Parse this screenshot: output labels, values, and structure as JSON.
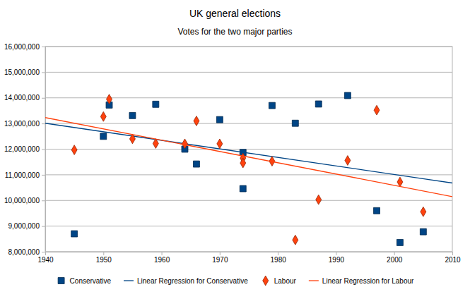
{
  "chart_data": {
    "type": "scatter",
    "title": "UK general elections",
    "subtitle": "Votes for the two major parties",
    "x": [
      1945,
      1950,
      1951,
      1955,
      1959,
      1964,
      1966,
      1970,
      1974,
      1974,
      1979,
      1983,
      1987,
      1992,
      1997,
      2001,
      2005
    ],
    "series": [
      {
        "name": "Conservative",
        "type": "scatter",
        "marker": "square",
        "color": "#004586",
        "values": [
          8700000,
          12500000,
          13720000,
          13310000,
          13750000,
          12000000,
          11420000,
          13150000,
          11870000,
          10460000,
          13700000,
          13010000,
          13760000,
          14090000,
          9600000,
          8360000,
          8780000
        ]
      },
      {
        "name": "Linear Regression for Conservative",
        "type": "line",
        "line_style": "solid",
        "color": "#004586",
        "x": [
          1940,
          2010
        ],
        "values": [
          13010000,
          10680000
        ]
      },
      {
        "name": "Labour",
        "type": "scatter",
        "marker": "diamond",
        "color": "#ff420e",
        "values": [
          11970000,
          13270000,
          13950000,
          12400000,
          12220000,
          12210000,
          13100000,
          12210000,
          11650000,
          11460000,
          11530000,
          8460000,
          10030000,
          11560000,
          13520000,
          10720000,
          9560000
        ]
      },
      {
        "name": "Linear Regression for Labour",
        "type": "line",
        "line_style": "solid",
        "color": "#ff420e",
        "x": [
          1940,
          2010
        ],
        "values": [
          13230000,
          10150000
        ]
      }
    ],
    "xlim": [
      1940,
      2010
    ],
    "xticks": [
      1940,
      1950,
      1960,
      1970,
      1980,
      1990,
      2000,
      2010
    ],
    "ylim": [
      8000000,
      16000000
    ],
    "yticks": [
      {
        "value": 8000000,
        "label": "8,000,000"
      },
      {
        "value": 9000000,
        "label": "9,000,000"
      },
      {
        "value": 10000000,
        "label": "10,000,000"
      },
      {
        "value": 11000000,
        "label": "11,000,000"
      },
      {
        "value": 12000000,
        "label": "12,000,000"
      },
      {
        "value": 13000000,
        "label": "13,000,000"
      },
      {
        "value": 14000000,
        "label": "14,000,000"
      },
      {
        "value": 15000000,
        "label": "15,000,000"
      },
      {
        "value": 16000000,
        "label": "16,000,000"
      }
    ],
    "grid": "y",
    "legend": "bottom"
  }
}
